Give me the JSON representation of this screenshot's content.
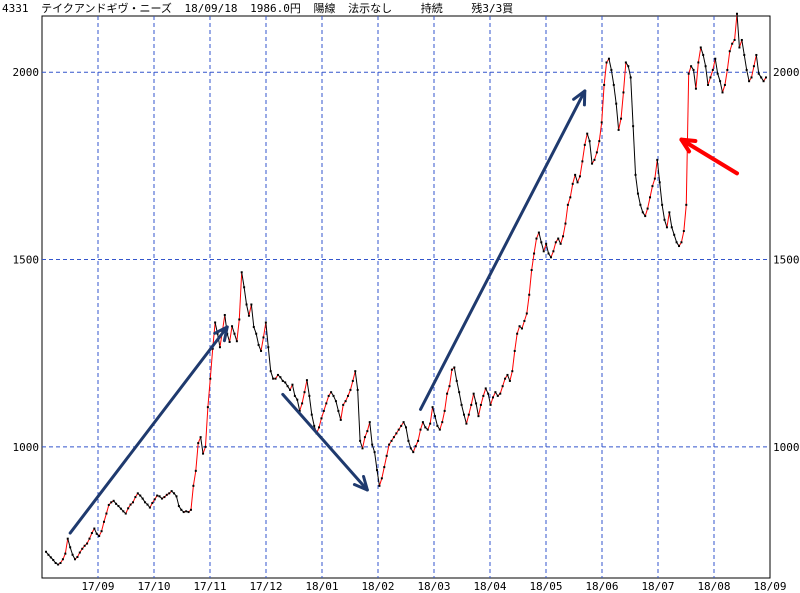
{
  "header": {
    "code": "4331",
    "name": "テイクアンドギヴ・ニーズ",
    "date": "18/09/18",
    "price": "1986.0円",
    "candle": "陽線",
    "rule": "法示なし",
    "status": "持続",
    "position": "残3/3買"
  },
  "chart_data": {
    "type": "line",
    "title": "",
    "xlabel": "",
    "ylabel": "",
    "ylim": [
      650,
      2150
    ],
    "yticks": [
      1000,
      1500,
      2000
    ],
    "xticks": [
      "17/09",
      "17/10",
      "17/11",
      "17/12",
      "18/01",
      "18/02",
      "18/03",
      "18/04",
      "18/05",
      "18/06",
      "18/07",
      "18/08",
      "18/09"
    ],
    "grid": true,
    "colors": {
      "up": "#ff0000",
      "down": "#000000",
      "arrow_main": "#1f3a6e",
      "arrow_accent": "#ff0000",
      "grid_h": "#3355cc",
      "grid_v": "#3355cc"
    },
    "series": [
      {
        "values": [
          720,
          712,
          705,
          698,
          690,
          686,
          690,
          700,
          715,
          755,
          732,
          712,
          700,
          706,
          718,
          728,
          736,
          742,
          755,
          770,
          782,
          768,
          762,
          775,
          800,
          822,
          845,
          852,
          856,
          848,
          842,
          835,
          828,
          822,
          836,
          846,
          852,
          866,
          876,
          870,
          862,
          852,
          846,
          838,
          850,
          860,
          870,
          868,
          862,
          866,
          872,
          876,
          882,
          876,
          868,
          842,
          832,
          826,
          828,
          826,
          832,
          896,
          936,
          1010,
          1026,
          982,
          1000,
          1106,
          1182,
          1262,
          1332,
          1302,
          1266,
          1308,
          1352,
          1302,
          1280,
          1322,
          1302,
          1282,
          1340,
          1466,
          1426,
          1380,
          1350,
          1380,
          1320,
          1302,
          1272,
          1256,
          1292,
          1332,
          1266,
          1202,
          1182,
          1182,
          1192,
          1186,
          1176,
          1172,
          1162,
          1152,
          1166,
          1136,
          1126,
          1096,
          1116,
          1146,
          1178,
          1136,
          1086,
          1056,
          1036,
          1052,
          1076,
          1096,
          1116,
          1136,
          1146,
          1136,
          1122,
          1096,
          1072,
          1112,
          1122,
          1136,
          1152,
          1176,
          1202,
          1152,
          1016,
          996,
          1026,
          1042,
          1066,
          1006,
          986,
          938,
          896,
          916,
          946,
          976,
          1006,
          1016,
          1026,
          1036,
          1046,
          1056,
          1066,
          1052,
          1016,
          996,
          986,
          1002,
          1016,
          1046,
          1066,
          1052,
          1046,
          1062,
          1106,
          1082,
          1056,
          1046,
          1066,
          1096,
          1142,
          1162,
          1206,
          1212,
          1176,
          1146,
          1112,
          1086,
          1062,
          1086,
          1112,
          1142,
          1116,
          1082,
          1112,
          1136,
          1156,
          1142,
          1112,
          1132,
          1146,
          1136,
          1142,
          1162,
          1182,
          1192,
          1176,
          1202,
          1256,
          1302,
          1322,
          1316,
          1336,
          1356,
          1406,
          1472,
          1516,
          1556,
          1572,
          1546,
          1522,
          1542,
          1516,
          1506,
          1522,
          1546,
          1556,
          1542,
          1562,
          1596,
          1646,
          1666,
          1702,
          1726,
          1706,
          1722,
          1762,
          1806,
          1836,
          1816,
          1756,
          1766,
          1786,
          1816,
          1866,
          1966,
          2026,
          2036,
          2006,
          1966,
          1916,
          1846,
          1876,
          1946,
          2026,
          2016,
          1986,
          1856,
          1726,
          1676,
          1646,
          1626,
          1616,
          1636,
          1666,
          1696,
          1716,
          1766,
          1706,
          1646,
          1606,
          1586,
          1626,
          1586,
          1566,
          1546,
          1536,
          1546,
          1576,
          1646,
          1996,
          2016,
          2006,
          1956,
          2026,
          2066,
          2046,
          2016,
          1966,
          1986,
          2006,
          2036,
          1996,
          1976,
          1946,
          1966,
          2006,
          2056,
          2076,
          2086,
          2156,
          2066,
          2086,
          2046,
          2006,
          1976,
          1986,
          2016,
          2046,
          1996,
          1986,
          1976,
          1986
        ]
      }
    ],
    "annotations": [
      {
        "kind": "arrow",
        "color": "arrow_main",
        "from": [
          10,
          770
        ],
        "to": [
          75,
          1320
        ]
      },
      {
        "kind": "arrow",
        "color": "arrow_main",
        "from": [
          98,
          1140
        ],
        "to": [
          133,
          885
        ]
      },
      {
        "kind": "arrow",
        "color": "arrow_main",
        "from": [
          155,
          1100
        ],
        "to": [
          223,
          1950
        ]
      },
      {
        "kind": "arrow",
        "color": "arrow_accent",
        "from": [
          286,
          1730
        ],
        "to": [
          263,
          1820
        ]
      }
    ]
  }
}
